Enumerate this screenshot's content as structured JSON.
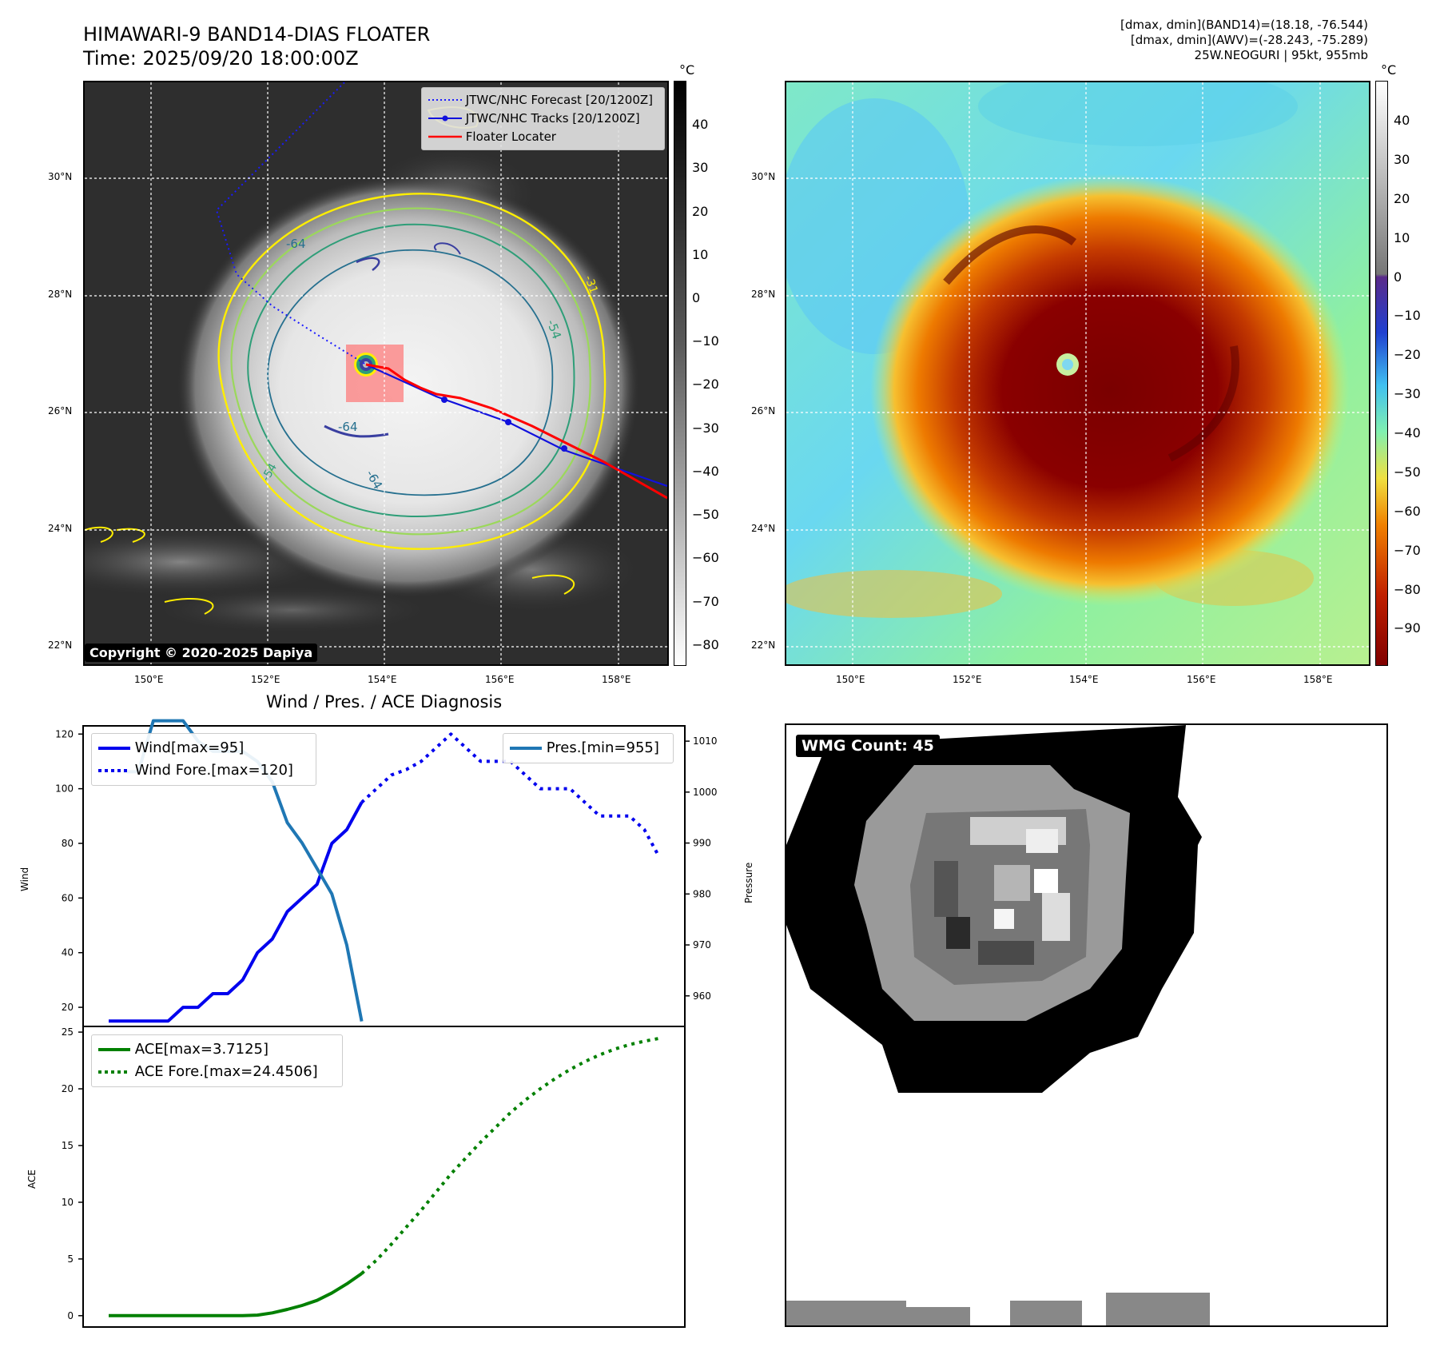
{
  "header": {
    "title_line1": "HIMAWARI-9 BAND14-DIAS FLOATER",
    "title_line2": "Time: 2025/09/20 18:00:00Z",
    "info_line1": "[dmax, dmin](BAND14)=(18.18, -76.544)",
    "info_line2": "[dmax, dmin](AWV)=(-28.243, -75.289)",
    "info_line3": "25W.NEOGURI | 95kt, 955mb"
  },
  "map_axes": {
    "lat_labels": [
      "30°N",
      "28°N",
      "26°N",
      "24°N",
      "22°N"
    ],
    "lon_labels": [
      "150°E",
      "152°E",
      "154°E",
      "156°E",
      "158°E"
    ]
  },
  "ir_panel": {
    "colorbar_unit": "°C",
    "colorbar_ticks": [
      "40",
      "30",
      "20",
      "10",
      "0",
      "−10",
      "−20",
      "−30",
      "−40",
      "−50",
      "−60",
      "−70",
      "−80"
    ],
    "legend": {
      "forecast": "JTWC/NHC Forecast [20/1200Z]",
      "tracks": "JTWC/NHC Tracks [20/1200Z]",
      "locater": "Floater Locater"
    },
    "contour_labels": [
      "-64",
      "-54",
      "-64",
      "-64",
      "-31",
      "-54"
    ],
    "copyright": "Copyright © 2020-2025 Dapiya",
    "colors": {
      "forecast": "#1a1aff",
      "track": "#1111dd",
      "locater": "#ff0000"
    }
  },
  "wv_panel": {
    "colorbar_unit": "°C",
    "colorbar_ticks": [
      "40",
      "30",
      "20",
      "10",
      "0",
      "−10",
      "−20",
      "−30",
      "−40",
      "−50",
      "−60",
      "−70",
      "−80",
      "−90"
    ]
  },
  "diagnosis": {
    "title": "Wind / Pres. / ACE Diagnosis",
    "wind_ylabel": "Wind",
    "pressure_ylabel": "Pressure",
    "ace_ylabel": "ACE",
    "legend_wind": "Wind[max=95]",
    "legend_wind_fore": "Wind Fore.[max=120]",
    "legend_pres": "Pres.[min=955]",
    "legend_ace": "ACE[max=3.7125]",
    "legend_ace_fore": "ACE Fore.[max=24.4506]"
  },
  "wmg_panel": {
    "label": "WMG Count: 45"
  },
  "chart_data": [
    {
      "type": "line",
      "title": "Wind / Pres. / ACE Diagnosis",
      "ylabel": "Wind",
      "y2label": "Pressure",
      "ylim": [
        13,
        123
      ],
      "y2lim": [
        954,
        1013
      ],
      "yticks": [
        20,
        40,
        60,
        80,
        100,
        120
      ],
      "y2ticks": [
        960,
        970,
        980,
        990,
        1000,
        1010
      ],
      "series": [
        {
          "name": "Wind[max=95]",
          "color": "#0000ee",
          "style": "solid",
          "axis": "left",
          "x": [
            0,
            1,
            2,
            3,
            4,
            5,
            6,
            7,
            8,
            9,
            10,
            11,
            12,
            13,
            14,
            15,
            16,
            17
          ],
          "values": [
            15,
            15,
            15,
            15,
            15,
            20,
            20,
            25,
            25,
            30,
            40,
            45,
            55,
            60,
            65,
            80,
            85,
            95
          ]
        },
        {
          "name": "Wind Fore.[max=120]",
          "color": "#0000ee",
          "style": "dotted",
          "axis": "left",
          "x": [
            17,
            18,
            19,
            20,
            21,
            22,
            23,
            24,
            25,
            26,
            27,
            28,
            29,
            30,
            31,
            32,
            33,
            34,
            35,
            36,
            37
          ],
          "values": [
            95,
            100,
            105,
            107,
            110,
            115,
            120,
            115,
            110,
            110,
            110,
            105,
            100,
            100,
            100,
            95,
            90,
            90,
            90,
            85,
            75
          ]
        },
        {
          "name": "Pres.[min=955]",
          "color": "#1f77b4",
          "style": "solid",
          "axis": "right",
          "x": [
            1,
            2,
            3,
            4,
            5,
            6,
            7,
            8,
            9,
            10,
            11,
            12,
            13,
            14,
            15,
            16,
            17
          ],
          "values": [
            1004,
            1004,
            1014,
            1014,
            1014,
            1010,
            1008,
            1008,
            1008,
            1006,
            1002,
            994,
            990,
            985,
            980,
            970,
            955
          ]
        }
      ]
    },
    {
      "type": "line",
      "ylabel": "ACE",
      "ylim": [
        -1,
        25.5
      ],
      "yticks": [
        0,
        5,
        10,
        15,
        20,
        25
      ],
      "series": [
        {
          "name": "ACE[max=3.7125]",
          "color": "#008000",
          "style": "solid",
          "x": [
            0,
            1,
            2,
            3,
            4,
            5,
            6,
            7,
            8,
            9,
            10,
            11,
            12,
            13,
            14,
            15,
            16,
            17
          ],
          "values": [
            0,
            0,
            0,
            0,
            0,
            0,
            0,
            0,
            0,
            0,
            0.05,
            0.25,
            0.55,
            0.9,
            1.35,
            2.0,
            2.8,
            3.7125
          ]
        },
        {
          "name": "ACE Fore.[max=24.4506]",
          "color": "#008000",
          "style": "dotted",
          "x": [
            17,
            18,
            19,
            20,
            21,
            22,
            23,
            24,
            25,
            26,
            27,
            28,
            29,
            30,
            31,
            32,
            33,
            34,
            35,
            36,
            37
          ],
          "values": [
            3.7125,
            4.9,
            6.3,
            7.8,
            9.3,
            10.9,
            12.5,
            13.9,
            15.3,
            16.6,
            17.9,
            19.0,
            20.0,
            20.9,
            21.7,
            22.4,
            23.0,
            23.5,
            23.9,
            24.2,
            24.4506
          ]
        }
      ]
    }
  ]
}
